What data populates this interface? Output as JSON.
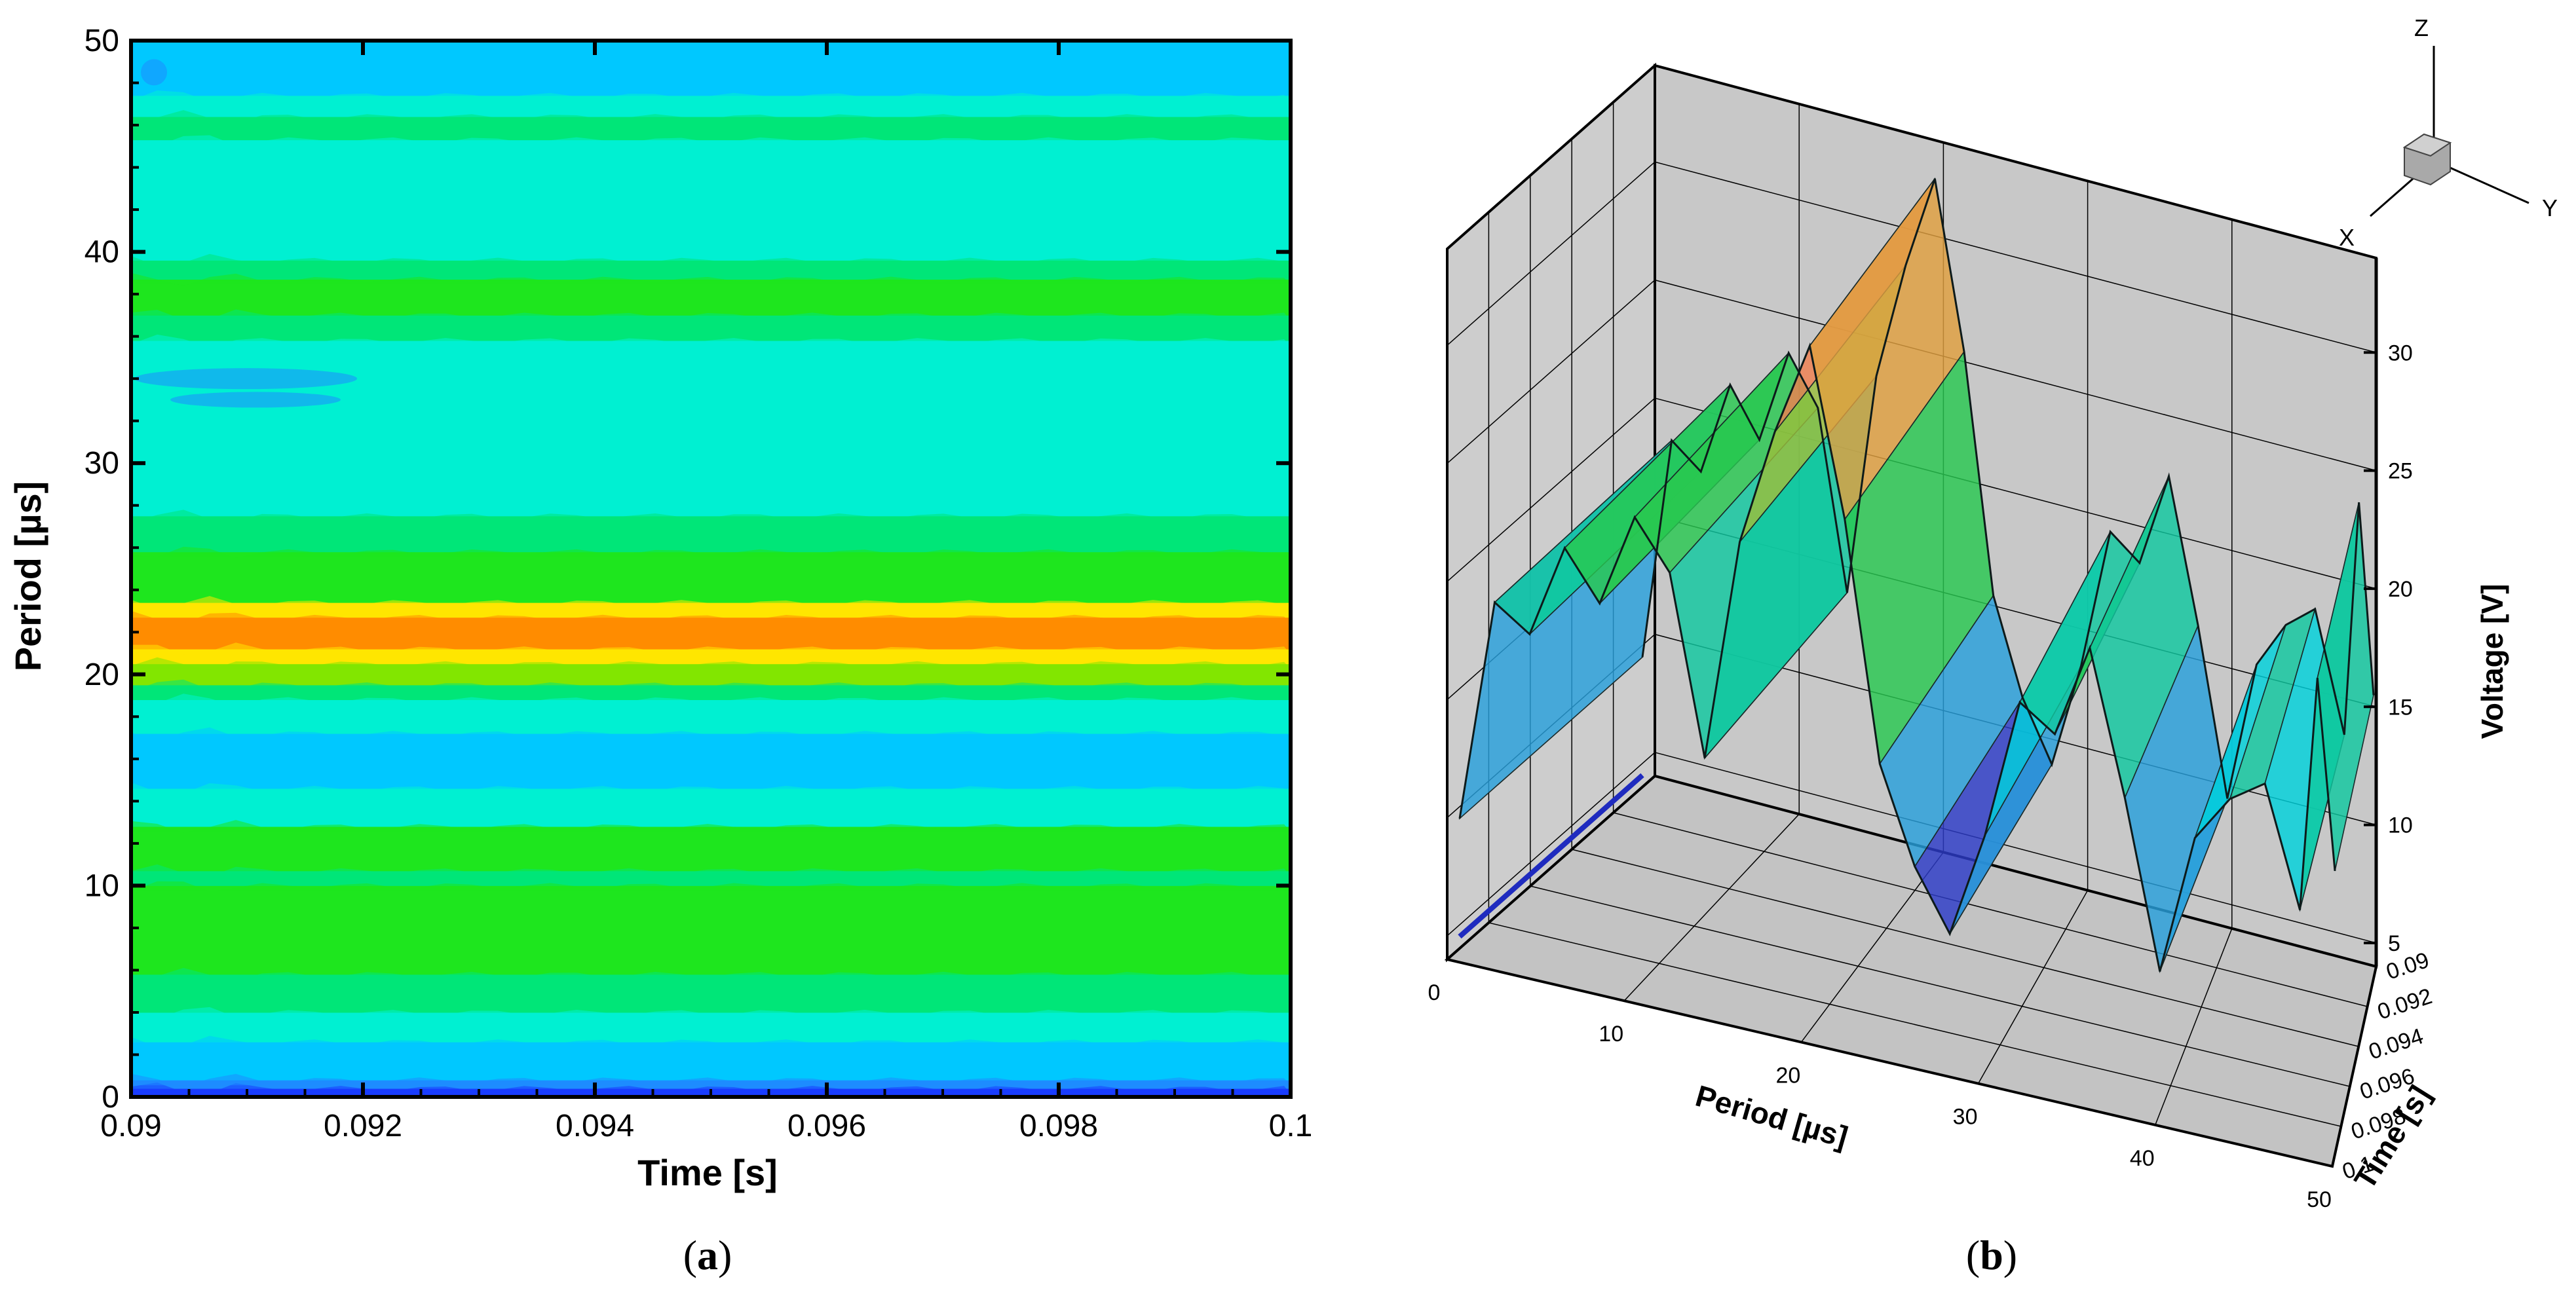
{
  "captions": {
    "a": "a",
    "b": "b"
  },
  "chart_data": [
    {
      "type": "heatmap",
      "panel": "a",
      "xlabel": "Time [s]",
      "ylabel": "Period [µs]",
      "xlim": [
        0.09,
        0.1
      ],
      "ylim": [
        0,
        50
      ],
      "x_ticks": [
        "0.09",
        "0.092",
        "0.094",
        "0.096",
        "0.098",
        "0.1"
      ],
      "y_ticks": [
        "0",
        "10",
        "20",
        "30",
        "40",
        "50"
      ],
      "grid": false,
      "colorscale": [
        "#1a3cff",
        "#1e8cff",
        "#00c8ff",
        "#00f0d2",
        "#00e678",
        "#1ee61e",
        "#82e600",
        "#ffe600",
        "#ff8c00"
      ],
      "bands": [
        {
          "y0": 0.0,
          "y1": 0.4,
          "color": "#1a3cff"
        },
        {
          "y0": 0.4,
          "y1": 0.8,
          "color": "#1e8cff"
        },
        {
          "y0": 0.8,
          "y1": 2.6,
          "color": "#00c8ff"
        },
        {
          "y0": 2.6,
          "y1": 4.0,
          "color": "#00f0d2"
        },
        {
          "y0": 4.0,
          "y1": 5.8,
          "color": "#00e678"
        },
        {
          "y0": 5.8,
          "y1": 10.0,
          "color": "#1ee61e"
        },
        {
          "y0": 10.0,
          "y1": 10.7,
          "color": "#00e678"
        },
        {
          "y0": 10.7,
          "y1": 12.8,
          "color": "#1ee61e"
        },
        {
          "y0": 12.8,
          "y1": 14.6,
          "color": "#00f0d2"
        },
        {
          "y0": 14.6,
          "y1": 17.2,
          "color": "#00c8ff"
        },
        {
          "y0": 17.2,
          "y1": 18.8,
          "color": "#00f0d2"
        },
        {
          "y0": 18.8,
          "y1": 19.5,
          "color": "#00e678"
        },
        {
          "y0": 19.5,
          "y1": 20.5,
          "color": "#82e600"
        },
        {
          "y0": 20.5,
          "y1": 21.2,
          "color": "#ffe600"
        },
        {
          "y0": 21.2,
          "y1": 22.7,
          "color": "#ff8c00"
        },
        {
          "y0": 22.7,
          "y1": 23.4,
          "color": "#ffe600"
        },
        {
          "y0": 23.4,
          "y1": 25.8,
          "color": "#1ee61e"
        },
        {
          "y0": 25.8,
          "y1": 27.5,
          "color": "#00e678"
        },
        {
          "y0": 27.5,
          "y1": 35.8,
          "color": "#00f0d2"
        },
        {
          "y0": 35.8,
          "y1": 37.0,
          "color": "#00e678"
        },
        {
          "y0": 37.0,
          "y1": 38.7,
          "color": "#1ee61e"
        },
        {
          "y0": 38.7,
          "y1": 39.6,
          "color": "#00e678"
        },
        {
          "y0": 39.6,
          "y1": 45.3,
          "color": "#00f0d2"
        },
        {
          "y0": 45.3,
          "y1": 46.4,
          "color": "#00e678"
        },
        {
          "y0": 46.4,
          "y1": 47.4,
          "color": "#00f0d2"
        },
        {
          "y0": 47.4,
          "y1": 50.0,
          "color": "#00c8ff"
        }
      ]
    },
    {
      "type": "area",
      "panel": "b",
      "xlabel": "Period [µs]",
      "ylabel": "Time [s]",
      "zlabel": "Voltage [V]",
      "xlim": [
        0,
        50
      ],
      "ylim": [
        0.09,
        0.1
      ],
      "zlim": [
        5,
        33
      ],
      "x_ticks": [
        "0",
        "10",
        "20",
        "30",
        "40",
        "50"
      ],
      "y_ticks": [
        "0.09",
        "0.092",
        "0.094",
        "0.096",
        "0.098",
        "0.1"
      ],
      "z_ticks": [
        "5",
        "10",
        "15",
        "20",
        "25",
        "30"
      ],
      "grid": true,
      "triad_labels": [
        "X",
        "Y",
        "Z"
      ],
      "period_us": [
        0,
        2,
        4,
        6,
        8,
        10,
        12,
        14,
        16,
        18,
        20,
        22,
        24,
        26,
        28,
        30,
        32,
        34,
        36,
        38,
        40,
        42,
        44,
        46,
        48,
        49,
        50
      ],
      "voltage_v": [
        9.5,
        19,
        18,
        22,
        20,
        24,
        22,
        14.5,
        24,
        29,
        33,
        26,
        16,
        12,
        9.5,
        14,
        20,
        19,
        23,
        17,
        10,
        16,
        18,
        19,
        14,
        24,
        16
      ],
      "colorscale": [
        "#2d3cc8",
        "#28a0dc",
        "#00d2dc",
        "#10c8a0",
        "#28c850",
        "#9abe3c",
        "#e0a040",
        "#f08050"
      ]
    }
  ]
}
